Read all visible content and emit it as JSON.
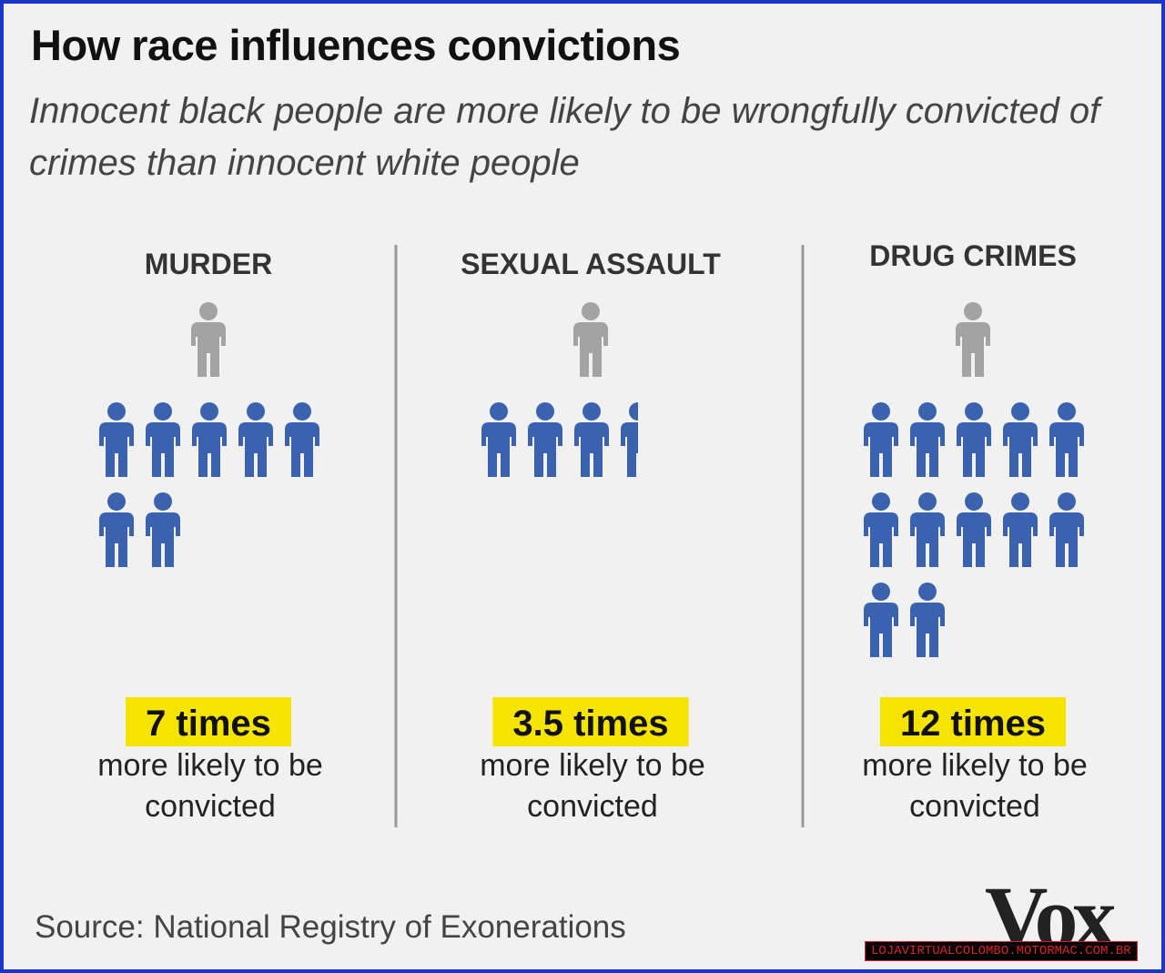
{
  "header": {
    "title": "How race influences convictions",
    "subtitle": "Innocent black people are more likely to be wrongfully convicted of crimes than innocent white people"
  },
  "panels": [
    {
      "title": "MURDER",
      "value": 7,
      "value_label": "7 times",
      "caption": "more likely to be convicted"
    },
    {
      "title": "SEXUAL ASSAULT",
      "value": 3.5,
      "value_label": "3.5 times",
      "caption": "more likely to be convicted"
    },
    {
      "title": "DRUG CRIMES",
      "value": 12,
      "value_label": "12 times",
      "caption": "more likely to be convicted"
    }
  ],
  "footer": {
    "source": "Source: National Registry of Exonerations",
    "logo": "Vox",
    "watermark": "LOJAVIRTUALCOLOMBO.MOTORMAC.COM.BR"
  }
}
